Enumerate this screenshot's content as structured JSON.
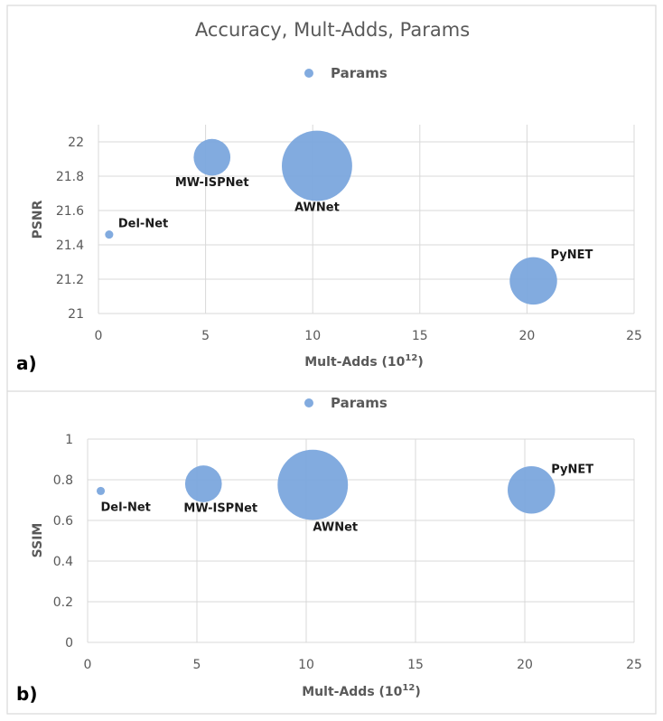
{
  "title": "Accuracy, Mult-Adds, Params",
  "chart_data": [
    {
      "type": "bubble",
      "panel": "a)",
      "title": "Accuracy, Mult-Adds, Params",
      "legend": "Params",
      "legend_position": "top",
      "xlabel_main": "Mult-Adds (10",
      "xlabel_sup": "12",
      "xlabel_end": ")",
      "ylabel": "PSNR",
      "xlim": [
        0,
        25
      ],
      "ylim": [
        21,
        22.1
      ],
      "xticks": [
        "0",
        "5",
        "10",
        "15",
        "20",
        "25"
      ],
      "yticks": [
        "21",
        "21.2",
        "21.4",
        "21.6",
        "21.8",
        "22"
      ],
      "grid": true,
      "points": [
        {
          "name": "Del-Net",
          "x": 0.5,
          "y": 21.46,
          "size": 0.3
        },
        {
          "name": "MW-ISPNet",
          "x": 5.3,
          "y": 21.91,
          "size": 6
        },
        {
          "name": "AWNet",
          "x": 10.2,
          "y": 21.86,
          "size": 22
        },
        {
          "name": "PyNET",
          "x": 20.3,
          "y": 21.19,
          "size": 10
        }
      ]
    },
    {
      "type": "bubble",
      "panel": "b)",
      "legend": "Params",
      "legend_position": "top",
      "xlabel_main": "Mult-Adds (10",
      "xlabel_sup": "12",
      "xlabel_end": ")",
      "ylabel": "SSIM",
      "xlim": [
        0,
        25
      ],
      "ylim": [
        0,
        1
      ],
      "xticks": [
        "0",
        "5",
        "10",
        "15",
        "20",
        "25"
      ],
      "yticks": [
        "0",
        "0.2",
        "0.4",
        "0.6",
        "0.8",
        "1"
      ],
      "grid": true,
      "points": [
        {
          "name": "Del-Net",
          "x": 0.6,
          "y": 0.745,
          "size": 0.3
        },
        {
          "name": "MW-ISPNet",
          "x": 5.3,
          "y": 0.78,
          "size": 6
        },
        {
          "name": "AWNet",
          "x": 10.3,
          "y": 0.775,
          "size": 22
        },
        {
          "name": "PyNET",
          "x": 20.3,
          "y": 0.75,
          "size": 10
        }
      ]
    }
  ]
}
